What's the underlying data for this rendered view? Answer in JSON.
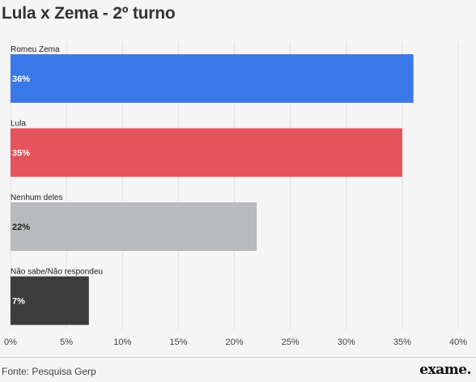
{
  "title": "Lula x Zema - 2º turno",
  "source": "Fonte: Pesquisa Gerp",
  "logo": "exame.",
  "chart_data": {
    "type": "bar",
    "orientation": "horizontal",
    "categories": [
      "Romeu Zema",
      "Lula",
      "Nenhum deles",
      "Não sabe/Não respondeu"
    ],
    "values": [
      36,
      35,
      22,
      7
    ],
    "value_labels": [
      "36%",
      "35%",
      "22%",
      "7%"
    ],
    "colors": [
      "#3b78e7",
      "#e5535b",
      "#b8babc",
      "#3c3c3c"
    ],
    "label_colors": [
      "#ffffff",
      "#ffffff",
      "#222222",
      "#ffffff"
    ],
    "xlim": [
      0,
      40
    ],
    "xticks": [
      0,
      5,
      10,
      15,
      20,
      25,
      30,
      35,
      40
    ],
    "xtick_labels": [
      "0%",
      "5%",
      "10%",
      "15%",
      "20%",
      "25%",
      "30%",
      "35%",
      "40%"
    ],
    "grid": true
  }
}
